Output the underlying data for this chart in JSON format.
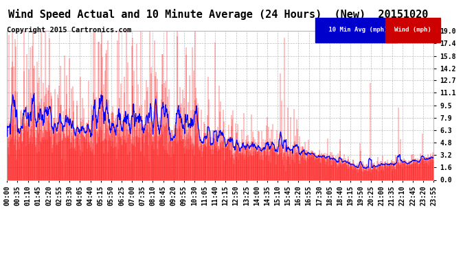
{
  "title": "Wind Speed Actual and 10 Minute Average (24 Hours)  (New)  20151020",
  "copyright": "Copyright 2015 Cartronics.com",
  "yticks": [
    0.0,
    1.6,
    3.2,
    4.8,
    6.3,
    7.9,
    9.5,
    11.1,
    12.7,
    14.2,
    15.8,
    17.4,
    19.0
  ],
  "ylim": [
    0.0,
    19.0
  ],
  "bg_color": "#ffffff",
  "grid_color": "#bbbbbb",
  "title_fontsize": 11,
  "copyright_fontsize": 7.5,
  "tick_fontsize": 7,
  "wind_color": "#ff0000",
  "avg_color": "#0000ff",
  "legend_blue_bg": "#0000cc",
  "legend_red_bg": "#cc0000",
  "time_labels": [
    "00:00",
    "00:35",
    "01:10",
    "01:45",
    "02:20",
    "02:55",
    "03:30",
    "04:05",
    "04:40",
    "05:15",
    "05:50",
    "06:25",
    "07:00",
    "07:35",
    "08:10",
    "08:45",
    "09:20",
    "09:55",
    "10:30",
    "11:05",
    "11:40",
    "12:15",
    "12:50",
    "13:25",
    "14:00",
    "14:35",
    "15:10",
    "15:45",
    "16:20",
    "16:55",
    "17:30",
    "18:05",
    "18:40",
    "19:15",
    "19:50",
    "20:25",
    "21:00",
    "21:35",
    "22:10",
    "22:45",
    "23:20",
    "23:55"
  ]
}
